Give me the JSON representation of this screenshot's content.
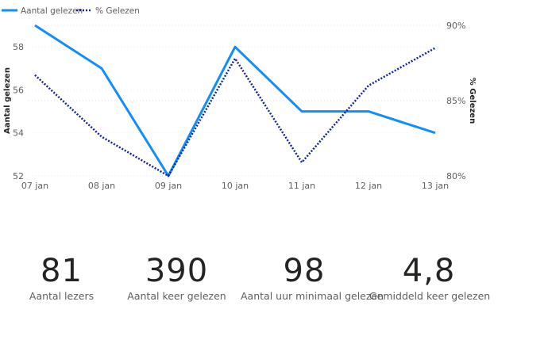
{
  "chart_data": {
    "type": "line",
    "categories": [
      "07 jan",
      "08 jan",
      "09 jan",
      "10 jan",
      "11 jan",
      "12 jan",
      "13 jan"
    ],
    "series": [
      {
        "name": "Aantal gelezen",
        "values": [
          59,
          57,
          52,
          58,
          55,
          55,
          54
        ],
        "axis": "left",
        "color": "#118DFF",
        "style": "solid"
      },
      {
        "name": "% Gelezen",
        "values": [
          86.7,
          82.6,
          80.0,
          87.8,
          80.9,
          86.0,
          88.5
        ],
        "axis": "right",
        "color": "#12239E",
        "style": "dotted"
      }
    ],
    "ylabel": "Aantal gelezen",
    "y2label": "% Gelezen",
    "ylim": [
      52,
      59
    ],
    "y2lim": [
      80,
      90
    ],
    "yticks": [
      "52",
      "54",
      "56",
      "58"
    ],
    "yticks_values": [
      52,
      54,
      56,
      58
    ],
    "y2ticks": [
      "80%",
      "85%",
      "90%"
    ],
    "y2ticks_values": [
      80,
      85,
      90
    ],
    "grid": true,
    "legend_position": "top-left"
  },
  "cards": [
    {
      "value": "81",
      "label": "Aantal lezers"
    },
    {
      "value": "390",
      "label": "Aantal keer gelezen"
    },
    {
      "value": "98",
      "label": "Aantal uur minimaal gelezen"
    },
    {
      "value": "4,8",
      "label": "Gemiddeld keer gelezen"
    }
  ]
}
